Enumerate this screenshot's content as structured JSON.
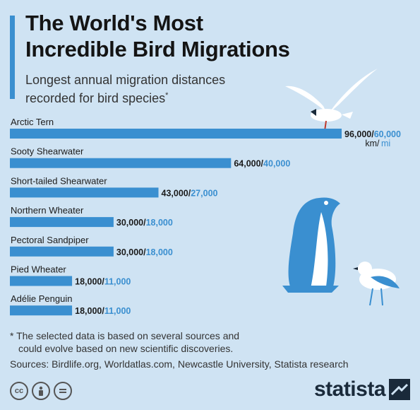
{
  "header": {
    "title_line1": "The World's Most",
    "title_line2": "Incredible Bird Migrations",
    "subtitle_line1": "Longest annual migration distances",
    "subtitle_line2": "recorded for bird species",
    "subtitle_mark": "*"
  },
  "chart_data": {
    "type": "bar",
    "orientation": "horizontal",
    "categories": [
      "Arctic Tern",
      "Sooty Shearwater",
      "Short-tailed Shearwater",
      "Northern Wheater",
      "Pectoral Sandpiper",
      "Pied Wheater",
      "Adélie Penguin"
    ],
    "series": [
      {
        "name": "km",
        "values": [
          96000,
          64000,
          43000,
          30000,
          30000,
          18000,
          18000
        ]
      },
      {
        "name": "mi",
        "values": [
          60000,
          40000,
          27000,
          18000,
          18000,
          11000,
          11000
        ]
      }
    ],
    "value_labels_km": [
      "96,000",
      "64,000",
      "43,000",
      "30,000",
      "30,000",
      "18,000",
      "18,000"
    ],
    "value_labels_mi": [
      "60,000",
      "40,000",
      "27,000",
      "18,000",
      "18,000",
      "11,000",
      "11,000"
    ],
    "separator": "/",
    "unit_km": "km",
    "unit_mi": "mi",
    "bar_color": "#3a8fd0",
    "km_label_color": "#1b1b1b",
    "mi_label_color": "#3a8fd0"
  },
  "footer": {
    "note_line1": "* The selected data is based on several sources and",
    "note_line2": "could evolve based on new scientific discoveries.",
    "sources": "Sources: Birdlife.org, Worldatlas.com, Newcastle University, Statista research",
    "cc_icons": [
      "cc-icon",
      "person-icon",
      "equals-icon"
    ],
    "cc_label": "cc",
    "brand": "statista"
  }
}
